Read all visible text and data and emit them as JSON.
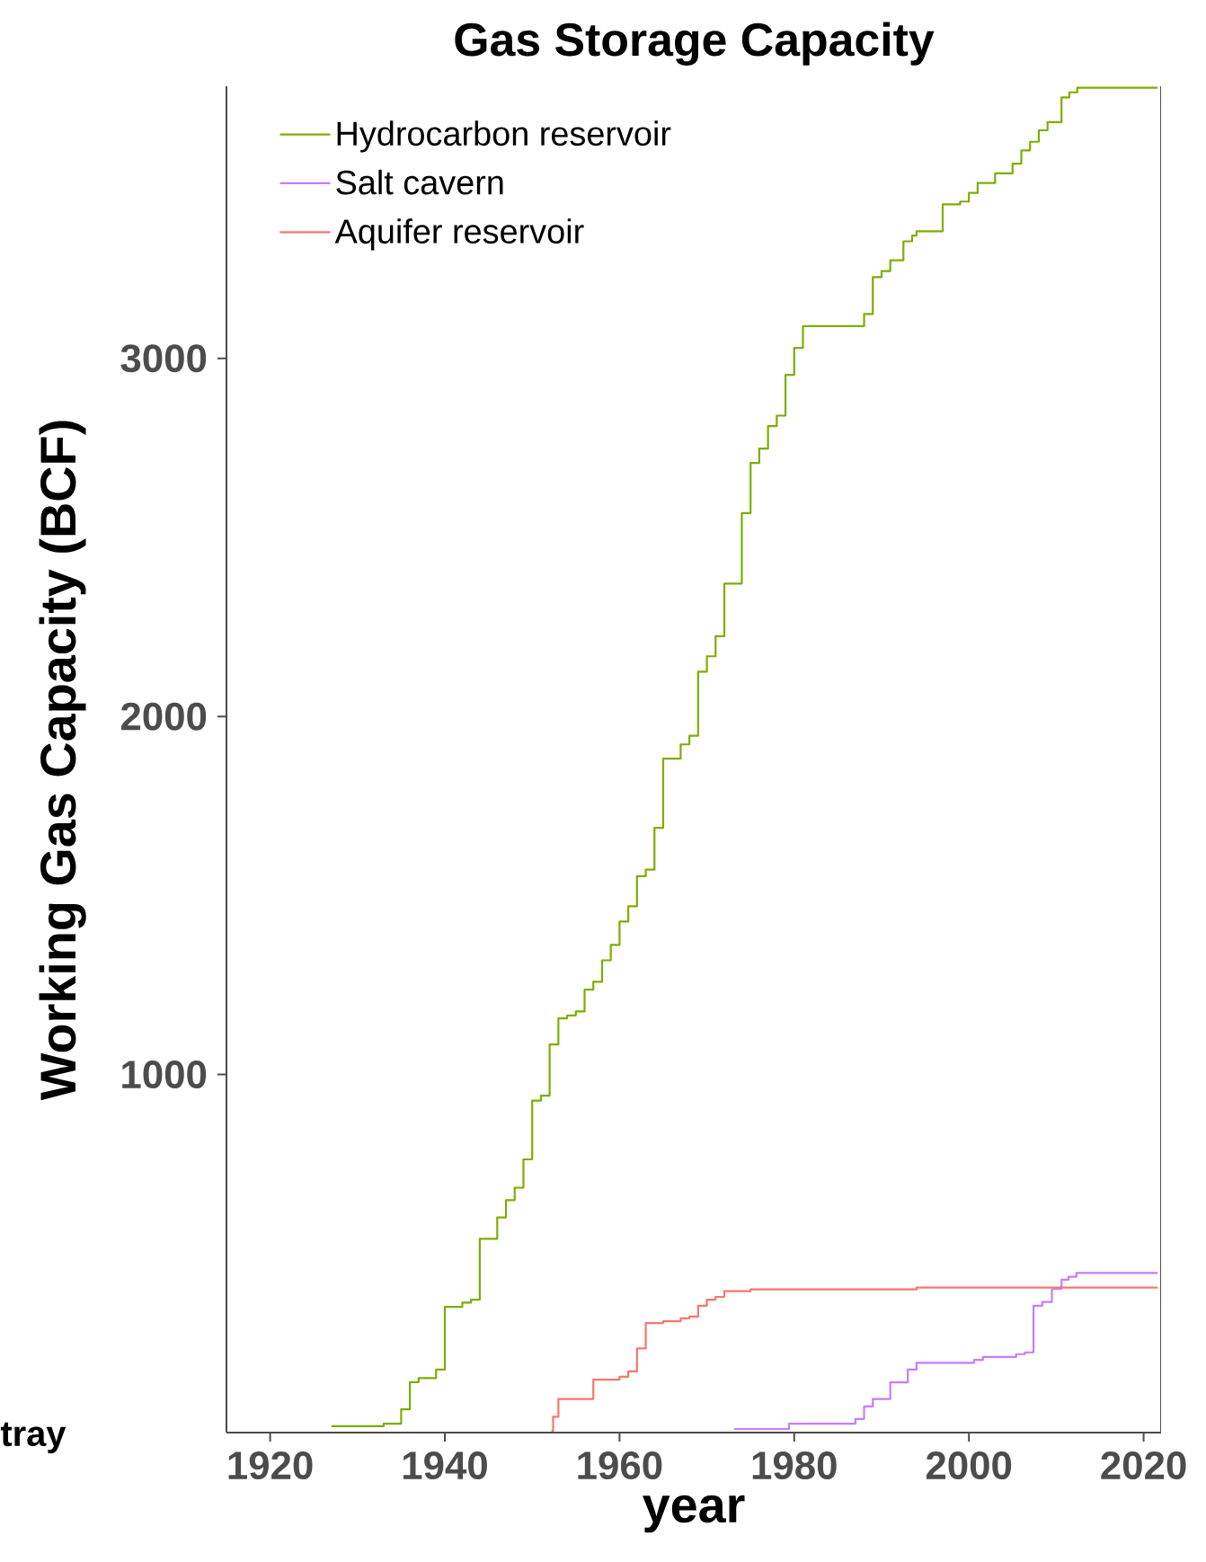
{
  "chart_data": {
    "type": "step",
    "title": "Gas Storage Capacity",
    "xlabel": "year",
    "ylabel": "Working Gas Capacity (BCF)",
    "annotations": [
      "tray"
    ],
    "xlim": [
      1915,
      2022
    ],
    "ylim": [
      0,
      3760
    ],
    "xticks": [
      1920,
      1940,
      1960,
      1980,
      2000,
      2020
    ],
    "yticks": [
      1000,
      2000,
      3000
    ],
    "legend": "top left",
    "marker": "none",
    "line_style": "solid",
    "grid": false,
    "series": [
      {
        "name": "Hydrocarbon reservoir",
        "color": "#7cae00",
        "x": [
          1927,
          1933,
          1935,
          1936,
          1937,
          1939,
          1940,
          1942,
          1943,
          1944,
          1946,
          1947,
          1948,
          1949,
          1950,
          1951,
          1952,
          1953,
          1954,
          1955,
          1956,
          1957,
          1958,
          1959,
          1960,
          1961,
          1962,
          1963,
          1964,
          1965,
          1967,
          1968,
          1969,
          1970,
          1971,
          1972,
          1974,
          1975,
          1976,
          1977,
          1978,
          1979,
          1980,
          1981,
          1988,
          1989,
          1990,
          1991,
          1992.5,
          1993.5,
          1994,
          1997,
          1999,
          2000,
          2001,
          2003,
          2005,
          2006,
          2007,
          2008,
          2009,
          2010.6,
          2011.5,
          2012.4,
          2021.6
        ],
        "values": [
          18,
          25,
          65,
          141,
          152,
          176,
          351,
          363,
          371,
          541,
          601,
          649,
          684,
          763,
          927,
          941,
          1084,
          1157,
          1165,
          1176,
          1237,
          1259,
          1319,
          1362,
          1427,
          1470,
          1554,
          1572,
          1689,
          1882,
          1922,
          1946,
          2125,
          2168,
          2224,
          2371,
          2568,
          2708,
          2748,
          2811,
          2840,
          2954,
          3029,
          3090,
          3124,
          3227,
          3244,
          3274,
          3327,
          3343,
          3355,
          3430,
          3438,
          3462,
          3490,
          3517,
          3544,
          3581,
          3605,
          3637,
          3660,
          3729,
          3743,
          3756,
          3756
        ]
      },
      {
        "name": "Salt cavern",
        "color": "#c77cff",
        "x": [
          1973.1,
          1979.4,
          1987,
          1988,
          1989,
          1991,
          1993,
          1994,
          2000.6,
          2001.6,
          2005.4,
          2006.4,
          2007.4,
          2008.4,
          2009.5,
          2010.6,
          2011.4,
          2012.3,
          2021.6
        ],
        "values": [
          10,
          25,
          38,
          73,
          94,
          140,
          176,
          195,
          203,
          211,
          219,
          224,
          354,
          365,
          401,
          427,
          435,
          446,
          446
        ]
      },
      {
        "name": "Aquifer reservoir",
        "color": "#f8766d",
        "x": [
          1952.2,
          1952.4,
          1953,
          1957,
          1960,
          1961,
          1962,
          1963,
          1965,
          1967,
          1968,
          1969,
          1970,
          1971,
          1972,
          1975,
          1994,
          2021.6
        ],
        "values": [
          5,
          44,
          94,
          148,
          156,
          171,
          235,
          306,
          311,
          319,
          324,
          354,
          371,
          379,
          395,
          400,
          405,
          405
        ]
      }
    ]
  }
}
